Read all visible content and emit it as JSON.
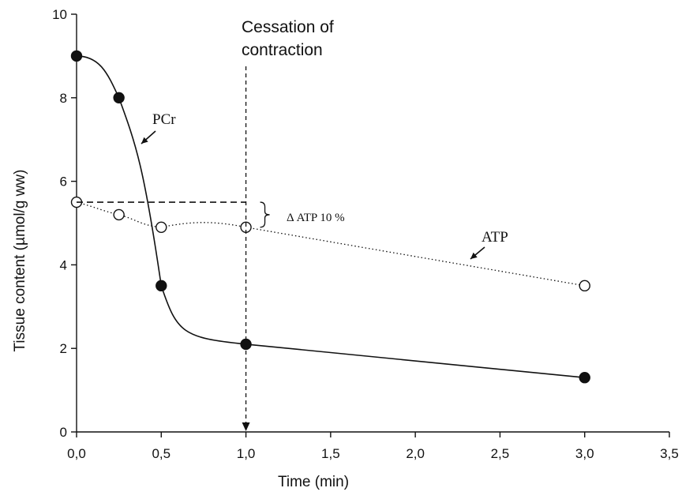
{
  "chart_data": {
    "type": "line",
    "xlabel": "Time (min)",
    "ylabel": "Tissue content (µmol/g ww)",
    "xlim": [
      0,
      3.5
    ],
    "ylim": [
      0,
      10
    ],
    "x_ticks": [
      "0,0",
      "0,5",
      "1,0",
      "1,5",
      "2,0",
      "2,5",
      "3,0",
      "3,5"
    ],
    "y_ticks": [
      "0",
      "2",
      "4",
      "6",
      "8",
      "10"
    ],
    "grid": false,
    "series": [
      {
        "name": "PCr",
        "marker": "filled-circle",
        "line_style": "solid-smooth",
        "x": [
          0,
          0.25,
          0.5,
          1.0,
          3.0
        ],
        "y": [
          9.0,
          8.0,
          3.5,
          2.1,
          1.3
        ]
      },
      {
        "name": "ATP",
        "marker": "open-circle",
        "line_style": "dotted-smooth",
        "x": [
          0,
          0.25,
          0.5,
          1.0,
          3.0
        ],
        "y": [
          5.5,
          5.2,
          4.9,
          4.9,
          3.5
        ]
      }
    ],
    "annotations": {
      "cessation": {
        "text_line1": "Cessation of",
        "text_line2": "contraction",
        "x": 1.0
      },
      "pcr_label": "PCr",
      "atp_label": "ATP",
      "delta_atp": "Δ ATP 10 %",
      "reference_y": 5.5
    }
  },
  "colors": {
    "line": "#111111",
    "background": "#ffffff"
  }
}
